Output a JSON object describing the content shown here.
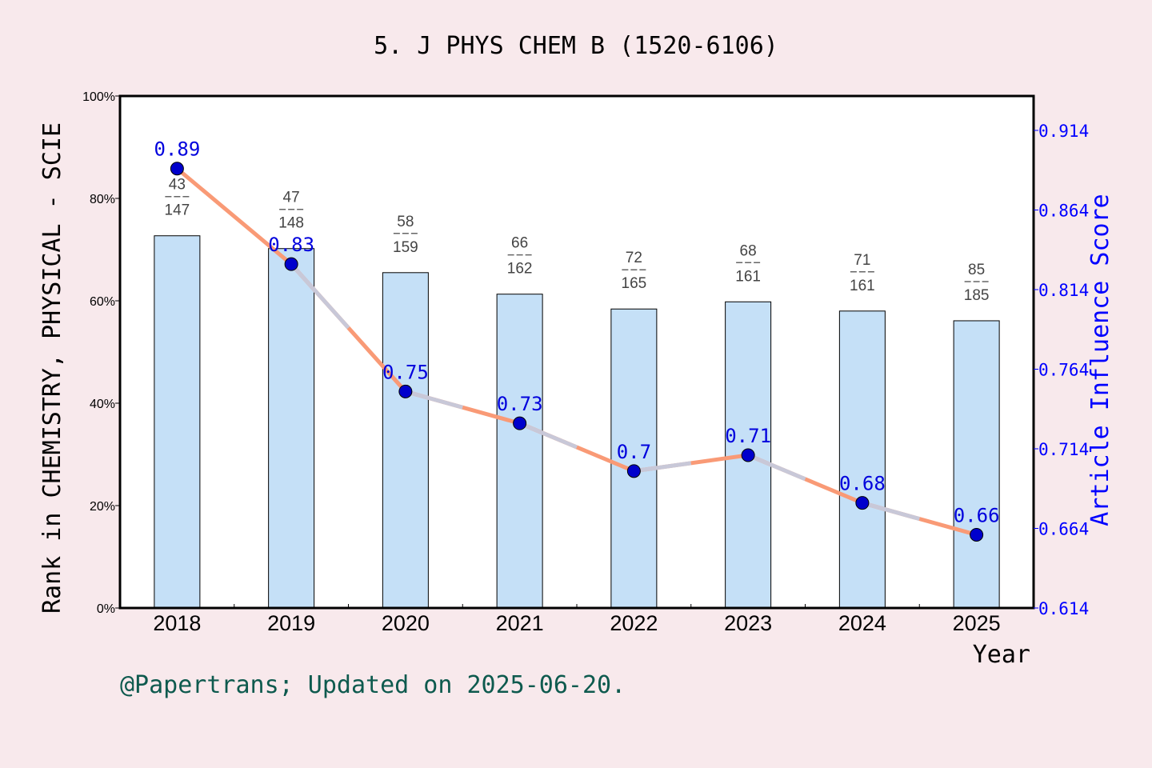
{
  "chart_data": {
    "type": "bar+line",
    "title": "5. J PHYS CHEM B (1520-6106)",
    "xlabel": "Year",
    "ylabel": "Rank in CHEMISTRY, PHYSICAL - SCIE",
    "y2label": "Article Influence Score",
    "categories": [
      "2018",
      "2019",
      "2020",
      "2021",
      "2022",
      "2023",
      "2024",
      "2025"
    ],
    "bar_values_percent": [
      72.7,
      70.2,
      65.5,
      61.3,
      58.4,
      59.8,
      58.0,
      56.1
    ],
    "rank_labels": [
      {
        "rank": "43",
        "total": "147"
      },
      {
        "rank": "47",
        "total": "148"
      },
      {
        "rank": "58",
        "total": "159"
      },
      {
        "rank": "66",
        "total": "162"
      },
      {
        "rank": "72",
        "total": "165"
      },
      {
        "rank": "68",
        "total": "161"
      },
      {
        "rank": "71",
        "total": "161"
      },
      {
        "rank": "85",
        "total": "185"
      }
    ],
    "line_values": [
      0.89,
      0.83,
      0.75,
      0.73,
      0.7,
      0.71,
      0.68,
      0.66
    ],
    "line_labels": [
      "0.89",
      "0.83",
      "0.75",
      "0.73",
      "0.7",
      "0.71",
      "0.68",
      "0.66"
    ],
    "ylim": [
      0,
      100
    ],
    "y_ticks": [
      "0%",
      "20%",
      "40%",
      "60%",
      "80%",
      "100%"
    ],
    "y2lim": [
      0.614,
      0.9356
    ],
    "y2_ticks": [
      "0.614",
      "0.664",
      "0.714",
      "0.764",
      "0.814",
      "0.864",
      "0.914"
    ],
    "grid": false,
    "colors": {
      "bar": "#c5e0f7",
      "line": "#f99a76",
      "line_overlay": "#c8c8d8",
      "marker": "#0000cc",
      "right_axis": "#0000ff",
      "background": "#f8e9ec"
    }
  },
  "footer": "@Papertrans; Updated on 2025-06-20."
}
